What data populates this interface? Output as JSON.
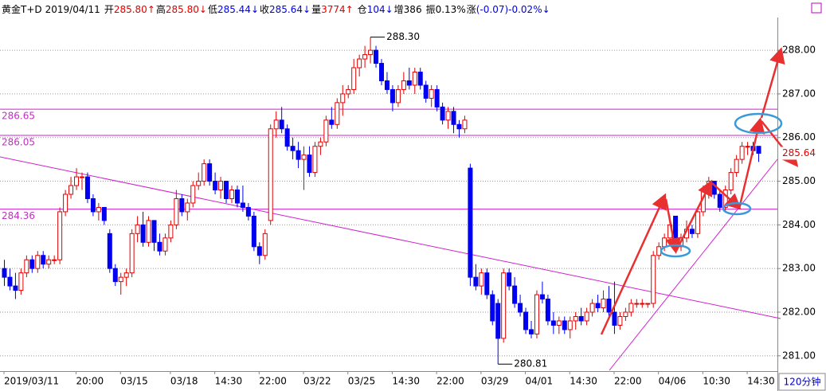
{
  "chart_data": {
    "type": "candlestick",
    "title": "黄金T+D",
    "date": "2019/04/11",
    "stats": [
      {
        "label": "开",
        "value": "285.80↑",
        "color": "#e00000"
      },
      {
        "label": "高",
        "value": "285.80↓",
        "color": "#e00000"
      },
      {
        "label": "低",
        "value": "285.44↓",
        "color": "#0000e0"
      },
      {
        "label": "收",
        "value": "285.64↓",
        "color": "#0000e0"
      },
      {
        "label": "量",
        "value": "3774↑",
        "color": "#e00000"
      },
      {
        "label": "仓",
        "value": "104↓",
        "color": "#0000e0"
      },
      {
        "label": "增",
        "value": "386",
        "color": "#000000"
      },
      {
        "label": "振",
        "value": "0.13%",
        "color": "#000000"
      },
      {
        "label": "涨",
        "value": "(-0.07)-0.02%↓",
        "color": "#0000e0"
      }
    ],
    "period": "120分钟",
    "up_color": "#e00000",
    "down_color": "#0000f0",
    "ylim": [
      280.65,
      288.75
    ],
    "yticks": [
      {
        "value": 281,
        "label": "281.00"
      },
      {
        "value": 282,
        "label": "282.00"
      },
      {
        "value": 283,
        "label": "283.00"
      },
      {
        "value": 284,
        "label": "284.00"
      },
      {
        "value": 285,
        "label": "285.00"
      },
      {
        "value": 286,
        "label": "286.00"
      },
      {
        "value": 287,
        "label": "287.00"
      },
      {
        "value": 288,
        "label": "288.00"
      }
    ],
    "grid": true,
    "hlines": [
      {
        "value": 286.65,
        "label": "286.65"
      },
      {
        "value": 286.05,
        "label": "286.05"
      },
      {
        "value": 284.36,
        "label": "284.36"
      }
    ],
    "last_price": {
      "value": 285.64,
      "label": "285.64"
    },
    "annotations": [
      {
        "value": 288.3,
        "label": "288.30",
        "at": "high"
      },
      {
        "value": 280.81,
        "label": "280.81",
        "at": "low"
      }
    ],
    "categories": [
      "2019/03/11",
      null,
      null,
      null,
      null,
      null,
      null,
      null,
      null,
      null,
      null,
      null,
      null,
      "20:00",
      null,
      null,
      null,
      null,
      null,
      null,
      null,
      "03/15",
      null,
      null,
      null,
      null,
      null,
      null,
      null,
      null,
      "03/18",
      null,
      null,
      null,
      null,
      null,
      null,
      null,
      "14:30",
      null,
      null,
      null,
      null,
      null,
      null,
      null,
      "22:00",
      null,
      null,
      null,
      null,
      null,
      null,
      null,
      "03/22",
      null,
      null,
      null,
      null,
      null,
      null,
      null,
      "03/25",
      null,
      null,
      null,
      null,
      null,
      null,
      null,
      "14:30",
      null,
      null,
      null,
      null,
      null,
      null,
      null,
      "22:00",
      null,
      null,
      null,
      null,
      null,
      null,
      null,
      "03/29",
      null,
      null,
      null,
      null,
      null,
      null,
      null,
      "04/01",
      null,
      null,
      null,
      null,
      null,
      null,
      null,
      "14:30",
      null,
      null,
      null,
      null,
      null,
      null,
      null,
      "22:00",
      null,
      null,
      null,
      null,
      null,
      null,
      null,
      "04/06",
      null,
      null,
      null,
      null,
      null,
      null,
      null,
      "10:30",
      null,
      null,
      null,
      null,
      null,
      null,
      null,
      "14:30",
      null,
      null
    ],
    "ohlc": [
      [
        283.0,
        283.2,
        282.6,
        282.8
      ],
      [
        282.8,
        283.0,
        282.5,
        282.6
      ],
      [
        282.6,
        282.9,
        282.3,
        282.5
      ],
      [
        282.5,
        283.0,
        282.4,
        282.9
      ],
      [
        282.9,
        283.3,
        282.8,
        283.2
      ],
      [
        283.2,
        283.3,
        282.9,
        283.0
      ],
      [
        283.0,
        283.4,
        282.9,
        283.3
      ],
      [
        283.3,
        283.4,
        283.0,
        283.1
      ],
      [
        283.1,
        283.3,
        283.0,
        283.2
      ],
      [
        283.2,
        283.3,
        283.1,
        283.2
      ],
      [
        283.2,
        284.4,
        283.1,
        284.3
      ],
      [
        284.3,
        284.8,
        284.2,
        284.7
      ],
      [
        284.7,
        285.1,
        284.6,
        284.9
      ],
      [
        284.9,
        285.3,
        284.8,
        285.1
      ],
      [
        285.1,
        285.2,
        284.8,
        285.1
      ],
      [
        285.1,
        285.2,
        284.5,
        284.6
      ],
      [
        284.6,
        284.7,
        284.2,
        284.3
      ],
      [
        284.3,
        284.5,
        284.1,
        284.4
      ],
      [
        284.4,
        284.4,
        284.0,
        284.1
      ],
      [
        283.8,
        283.9,
        282.9,
        283.0
      ],
      [
        283.0,
        283.1,
        282.6,
        282.7
      ],
      [
        282.7,
        282.9,
        282.4,
        282.8
      ],
      [
        282.8,
        283.0,
        282.6,
        282.9
      ],
      [
        282.9,
        283.9,
        282.8,
        283.8
      ],
      [
        283.8,
        284.2,
        283.6,
        284.0
      ],
      [
        284.0,
        284.3,
        283.5,
        283.6
      ],
      [
        283.6,
        284.2,
        283.5,
        284.1
      ],
      [
        284.1,
        284.1,
        283.4,
        283.6
      ],
      [
        283.6,
        283.8,
        283.3,
        283.4
      ],
      [
        283.4,
        283.8,
        283.3,
        283.7
      ],
      [
        283.7,
        284.1,
        283.6,
        284.0
      ],
      [
        284.0,
        284.8,
        283.9,
        284.6
      ],
      [
        284.6,
        284.7,
        284.2,
        284.3
      ],
      [
        284.3,
        284.6,
        284.1,
        284.5
      ],
      [
        284.5,
        285.0,
        284.4,
        284.9
      ],
      [
        284.9,
        285.2,
        284.8,
        285.0
      ],
      [
        285.0,
        285.5,
        284.9,
        285.4
      ],
      [
        285.4,
        285.5,
        284.9,
        285.0
      ],
      [
        285.0,
        285.2,
        284.7,
        284.8
      ],
      [
        284.8,
        285.1,
        284.6,
        285.0
      ],
      [
        285.0,
        285.0,
        284.5,
        284.6
      ],
      [
        284.6,
        284.9,
        284.5,
        284.8
      ],
      [
        284.8,
        284.9,
        284.4,
        284.5
      ],
      [
        284.5,
        284.9,
        284.3,
        284.4
      ],
      [
        284.4,
        284.5,
        284.1,
        284.2
      ],
      [
        284.2,
        284.3,
        283.4,
        283.5
      ],
      [
        283.5,
        283.6,
        283.1,
        283.3
      ],
      [
        283.3,
        283.9,
        283.2,
        283.8
      ],
      [
        284.1,
        286.3,
        284.0,
        286.2
      ],
      [
        286.2,
        286.6,
        286.0,
        286.4
      ],
      [
        286.4,
        286.7,
        286.1,
        286.2
      ],
      [
        286.2,
        286.3,
        285.7,
        285.8
      ],
      [
        285.8,
        286.0,
        285.5,
        285.7
      ],
      [
        285.7,
        285.9,
        285.3,
        285.5
      ],
      [
        285.5,
        285.8,
        284.8,
        285.6
      ],
      [
        285.6,
        285.8,
        285.1,
        285.2
      ],
      [
        285.2,
        285.9,
        285.1,
        285.8
      ],
      [
        285.8,
        286.0,
        285.6,
        285.9
      ],
      [
        285.9,
        286.5,
        285.8,
        286.4
      ],
      [
        286.4,
        286.7,
        286.2,
        286.3
      ],
      [
        286.3,
        286.9,
        286.2,
        286.8
      ],
      [
        286.8,
        287.2,
        286.5,
        287.0
      ],
      [
        287.0,
        287.2,
        286.9,
        287.1
      ],
      [
        287.1,
        287.8,
        287.0,
        287.6
      ],
      [
        287.6,
        287.9,
        287.4,
        287.8
      ],
      [
        287.8,
        288.1,
        287.6,
        287.9
      ],
      [
        287.9,
        288.3,
        287.7,
        288.0
      ],
      [
        288.0,
        288.1,
        287.6,
        287.7
      ],
      [
        287.7,
        287.8,
        287.2,
        287.3
      ],
      [
        287.3,
        287.5,
        287.0,
        287.1
      ],
      [
        287.1,
        287.2,
        286.6,
        286.8
      ],
      [
        286.8,
        287.2,
        286.7,
        287.1
      ],
      [
        287.1,
        287.5,
        287.0,
        287.3
      ],
      [
        287.3,
        287.6,
        287.1,
        287.2
      ],
      [
        287.2,
        287.6,
        287.0,
        287.5
      ],
      [
        287.5,
        287.6,
        287.1,
        287.2
      ],
      [
        287.2,
        287.3,
        286.8,
        286.9
      ],
      [
        286.9,
        287.2,
        286.7,
        287.1
      ],
      [
        287.1,
        287.2,
        286.6,
        286.7
      ],
      [
        286.7,
        286.8,
        286.3,
        286.4
      ],
      [
        286.4,
        286.7,
        286.2,
        286.6
      ],
      [
        286.6,
        286.7,
        286.1,
        286.3
      ],
      [
        286.3,
        286.4,
        286.0,
        286.2
      ],
      [
        286.2,
        286.5,
        286.1,
        286.4
      ],
      [
        285.3,
        285.4,
        282.6,
        282.8
      ],
      [
        282.8,
        283.1,
        282.5,
        282.6
      ],
      [
        282.6,
        283.0,
        282.4,
        282.9
      ],
      [
        282.9,
        283.0,
        282.3,
        282.4
      ],
      [
        282.4,
        282.5,
        281.7,
        281.8
      ],
      [
        282.2,
        282.3,
        280.81,
        281.4
      ],
      [
        281.4,
        283.0,
        281.3,
        282.9
      ],
      [
        282.9,
        283.0,
        282.5,
        282.6
      ],
      [
        282.6,
        282.8,
        282.1,
        282.2
      ],
      [
        282.2,
        282.4,
        281.9,
        282.0
      ],
      [
        282.0,
        282.1,
        281.5,
        281.6
      ],
      [
        281.6,
        281.8,
        281.4,
        281.5
      ],
      [
        281.5,
        282.5,
        281.4,
        282.4
      ],
      [
        282.4,
        282.7,
        282.2,
        282.3
      ],
      [
        282.3,
        282.4,
        281.7,
        281.8
      ],
      [
        281.8,
        282.0,
        281.5,
        281.7
      ],
      [
        281.7,
        281.9,
        281.5,
        281.8
      ],
      [
        281.8,
        281.9,
        281.5,
        281.6
      ],
      [
        281.6,
        281.9,
        281.4,
        281.8
      ],
      [
        281.8,
        282.0,
        281.6,
        281.9
      ],
      [
        281.9,
        282.1,
        281.7,
        281.8
      ],
      [
        281.8,
        282.1,
        281.7,
        282.0
      ],
      [
        282.0,
        282.3,
        281.9,
        282.2
      ],
      [
        282.2,
        282.4,
        282.0,
        282.1
      ],
      [
        282.1,
        282.5,
        282.0,
        282.3
      ],
      [
        282.3,
        282.6,
        281.9,
        282.0
      ],
      [
        282.0,
        282.7,
        281.5,
        281.7
      ],
      [
        281.7,
        282.0,
        281.6,
        281.9
      ],
      [
        281.9,
        282.1,
        281.8,
        282.0
      ],
      [
        282.0,
        282.3,
        281.9,
        282.2
      ],
      [
        282.2,
        282.3,
        282.1,
        282.2
      ],
      [
        282.2,
        282.3,
        282.1,
        282.2
      ],
      [
        282.2,
        282.2,
        282.1,
        282.2
      ],
      [
        282.2,
        283.4,
        282.1,
        283.3
      ],
      [
        283.3,
        283.6,
        283.2,
        283.5
      ],
      [
        283.5,
        283.8,
        283.4,
        283.7
      ],
      [
        283.7,
        284.2,
        283.6,
        284.0
      ],
      [
        284.2,
        284.2,
        283.4,
        283.5
      ],
      [
        283.5,
        283.8,
        283.4,
        283.7
      ],
      [
        283.7,
        284.1,
        283.6,
        283.9
      ],
      [
        283.9,
        284.0,
        283.7,
        283.8
      ],
      [
        283.8,
        284.4,
        283.7,
        284.3
      ],
      [
        284.3,
        284.9,
        284.2,
        284.8
      ],
      [
        284.8,
        285.1,
        284.6,
        285.0
      ],
      [
        285.0,
        285.0,
        284.6,
        284.7
      ],
      [
        284.7,
        284.8,
        284.3,
        284.4
      ],
      [
        284.4,
        284.9,
        284.3,
        284.8
      ],
      [
        284.8,
        285.3,
        284.7,
        285.2
      ],
      [
        285.2,
        285.6,
        285.1,
        285.5
      ],
      [
        285.5,
        285.9,
        285.4,
        285.8
      ],
      [
        285.8,
        285.9,
        285.6,
        285.8
      ],
      [
        285.8,
        285.9,
        285.6,
        285.7
      ],
      [
        285.8,
        285.8,
        285.44,
        285.64
      ]
    ]
  }
}
